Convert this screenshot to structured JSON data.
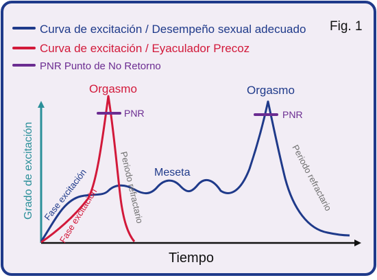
{
  "figure_label": "Fig. 1",
  "colors": {
    "background": "#f2edf5",
    "border": "#1f3a8a",
    "blue": "#1f3a8a",
    "red": "#d2193a",
    "purple": "#6b2c91",
    "axis_y": "#2a8f99",
    "axis_x": "#111111",
    "gray": "#6f6f6f"
  },
  "legend": [
    {
      "label": "Curva de excitación / Desempeño sexual adecuado",
      "color": "#1f3a8a",
      "swatch": "line-blue"
    },
    {
      "label": "Curva de excitación / Eyaculador Precoz",
      "color": "#d2193a",
      "swatch": "line-red"
    },
    {
      "label": "PNR Punto de No Retorno",
      "color": "#6b2c91",
      "swatch": "line-purple"
    }
  ],
  "chart_data": {
    "type": "line",
    "xlabel": "Tiempo",
    "ylabel": "Grado de excitación",
    "annotations": {
      "orgasm_early": "Orgasmo",
      "orgasm_normal": "Orgasmo",
      "pnr_early": "PNR",
      "pnr_normal": "PNR",
      "excitation_blue": "Fase excitación",
      "excitation_red": "Fase excitación",
      "refractory_early": "Periodo refractario",
      "refractory_normal": "Periodo refractario",
      "plateau": "Meseta"
    },
    "series": [
      {
        "name": "Curva de excitación / Desempeño sexual adecuado",
        "color": "#1f3a8a"
      },
      {
        "name": "Curva de excitación / Eyaculador Precoz",
        "color": "#d2193a"
      }
    ]
  }
}
